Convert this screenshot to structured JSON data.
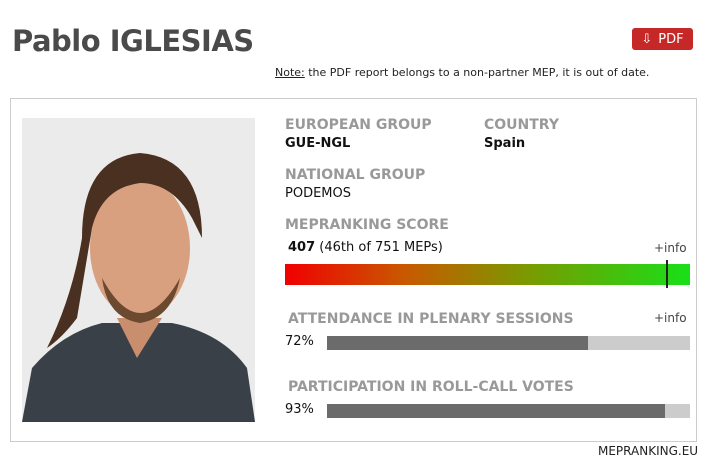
{
  "title": "Pablo IGLESIAS",
  "pdf_button": {
    "icon": "download-arrow-icon",
    "label": "PDF"
  },
  "note": {
    "prefix": "Note:",
    "text": " the PDF report belongs to a non-partner MEP, it is out of date."
  },
  "profile": {
    "european_group": {
      "label": "EUROPEAN GROUP",
      "value": "GUE-NGL"
    },
    "country": {
      "label": "COUNTRY",
      "value": "Spain"
    },
    "national_group": {
      "label": "NATIONAL GROUP",
      "value": "PODEMOS"
    },
    "score": {
      "label": "MEPRANKING SCORE",
      "value": "407",
      "rank": "(46th of 751 MEPs)",
      "info": "+info",
      "marker_fraction": 0.94
    },
    "attendance": {
      "label": "ATTENDANCE IN PLENARY SESSIONS",
      "value": "72%",
      "percent": 72,
      "info": "+info"
    },
    "participation": {
      "label": "PARTICIPATION IN ROLL-CALL VOTES",
      "value": "93%",
      "percent": 93
    }
  },
  "footer": "MEPRANKING.EU",
  "colors": {
    "pdf": "#c62828",
    "bar_fill": "#6b6b6b",
    "bar_track": "#cccccc"
  }
}
